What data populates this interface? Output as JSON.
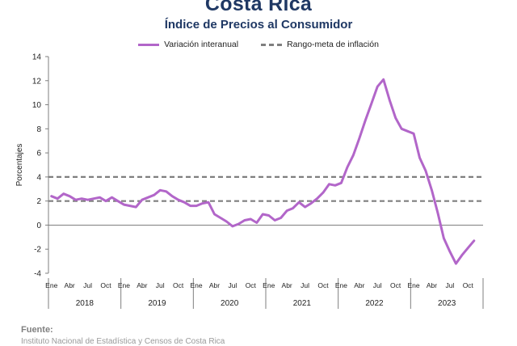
{
  "header": {
    "title": "Costa Rica",
    "subtitle": "Índice de Precios al Consumidor"
  },
  "legend": {
    "series_label": "Variación interanual",
    "band_label": "Rango-meta de inflación"
  },
  "footer": {
    "source_label": "Fuente:",
    "source_text": "Instituto Nacional de Estadística y Censos de Costa Rica"
  },
  "colors": {
    "series": "#b266c9",
    "band": "#7f7f7f",
    "axis": "#7f7f7f"
  },
  "chart_data": {
    "type": "line",
    "title": "Índice de Precios al Consumidor",
    "ylabel": "Porcentajes",
    "ylim": [
      -4,
      14
    ],
    "yticks": [
      -4,
      -2,
      0,
      2,
      4,
      6,
      8,
      10,
      12,
      14
    ],
    "grid": false,
    "legend_position": "top",
    "month_labels": [
      "Ene",
      "Abr",
      "Jul",
      "Oct"
    ],
    "years": [
      "2018",
      "2019",
      "2020",
      "2021",
      "2022",
      "2023"
    ],
    "band": {
      "name": "Rango-meta de inflación",
      "lower": 2,
      "upper": 4
    },
    "series": [
      {
        "name": "Variación interanual",
        "values": [
          2.4,
          2.2,
          2.6,
          2.4,
          2.1,
          2.2,
          2.1,
          2.2,
          2.3,
          2.0,
          2.3,
          2.0,
          1.7,
          1.6,
          1.5,
          2.1,
          2.3,
          2.5,
          2.9,
          2.8,
          2.4,
          2.1,
          1.9,
          1.6,
          1.6,
          1.8,
          1.9,
          0.9,
          0.6,
          0.3,
          -0.1,
          0.1,
          0.4,
          0.5,
          0.2,
          0.9,
          0.8,
          0.4,
          0.6,
          1.2,
          1.4,
          1.9,
          1.5,
          1.8,
          2.2,
          2.7,
          3.4,
          3.3,
          3.5,
          4.8,
          5.8,
          7.2,
          8.7,
          10.1,
          11.5,
          12.1,
          10.4,
          8.9,
          8.0,
          7.8,
          7.6,
          5.6,
          4.5,
          2.9,
          1.0,
          -1.1,
          -2.2,
          -3.2,
          -2.5,
          -1.9,
          -1.3
        ]
      }
    ]
  }
}
